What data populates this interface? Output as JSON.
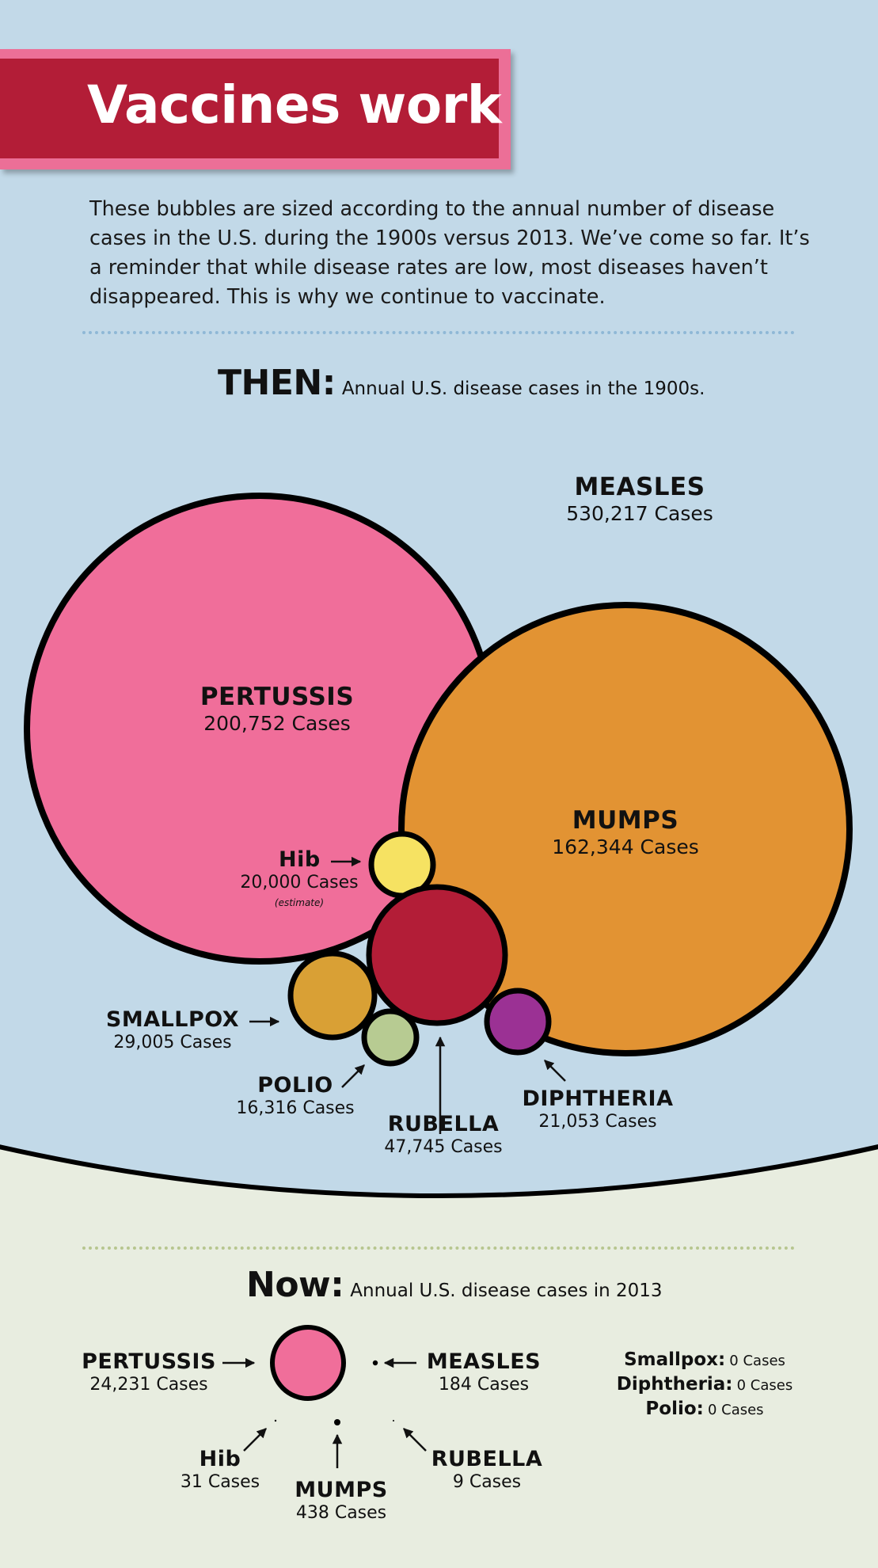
{
  "title": "Vaccines work",
  "intro": "These bubbles are sized according to the annual number of disease cases in the U.S. during the 1900s versus 2013. We’ve come so far. It’s a reminder that while disease rates are low, most diseases haven’t disappeared. This is why we continue to vaccinate.",
  "then_heading": {
    "big": "THEN:",
    "small": "Annual U.S. disease cases in the 1900s."
  },
  "now_heading": {
    "big": "Now:",
    "small": "Annual U.S. disease cases in 2013"
  },
  "colors": {
    "background_top": "#c2d9e8",
    "background_bottom": "#e8ede0",
    "title_band": "#b31d37",
    "title_border": "#ec6f97",
    "pertussis": "#f06e9a",
    "mumps": "#e29333",
    "hib": "#f6e262",
    "rubella": "#b31d37",
    "smallpox": "#d9a035",
    "polio": "#b7cb92",
    "diphtheria": "#9b3194"
  },
  "chart_data": [
    {
      "type": "bubble",
      "period": "1900s",
      "series": [
        {
          "name": "MEASLES",
          "cases": 530217,
          "label": "530,217 Cases"
        },
        {
          "name": "PERTUSSIS",
          "cases": 200752,
          "label": "200,752 Cases"
        },
        {
          "name": "MUMPS",
          "cases": 162344,
          "label": "162,344 Cases"
        },
        {
          "name": "RUBELLA",
          "cases": 47745,
          "label": "47,745 Cases"
        },
        {
          "name": "SMALLPOX",
          "cases": 29005,
          "label": "29,005 Cases"
        },
        {
          "name": "DIPHTHERIA",
          "cases": 21053,
          "label": "21,053 Cases"
        },
        {
          "name": "Hib",
          "cases": 20000,
          "label": "20,000 Cases",
          "note": "(estimate)"
        },
        {
          "name": "POLIO",
          "cases": 16316,
          "label": "16,316 Cases"
        }
      ]
    },
    {
      "type": "bubble",
      "period": "2013",
      "series": [
        {
          "name": "PERTUSSIS",
          "cases": 24231,
          "label": "24,231 Cases"
        },
        {
          "name": "MUMPS",
          "cases": 438,
          "label": "438 Cases"
        },
        {
          "name": "MEASLES",
          "cases": 184,
          "label": "184 Cases"
        },
        {
          "name": "Hib",
          "cases": 31,
          "label": "31 Cases"
        },
        {
          "name": "RUBELLA",
          "cases": 9,
          "label": "9 Cases"
        }
      ],
      "zero_cases": [
        {
          "name": "Smallpox:",
          "label": "0 Cases"
        },
        {
          "name": "Diphtheria:",
          "label": "0 Cases"
        },
        {
          "name": "Polio:",
          "label": "0 Cases"
        }
      ]
    }
  ]
}
